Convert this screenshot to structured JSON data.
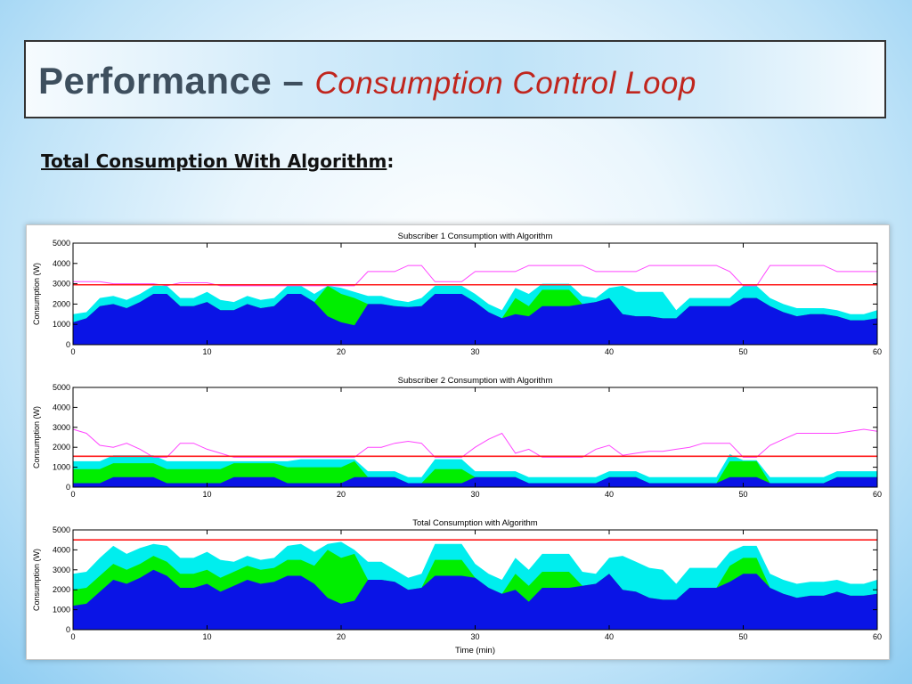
{
  "slide": {
    "title_main": "Performance –",
    "title_sub": "Consumption Control Loop",
    "subtitle_text": "Total Consumption With Algorithm",
    "subtitle_colon": ":"
  },
  "colors": {
    "blue": "#0a14e6",
    "green": "#00ee00",
    "cyan": "#00eeee",
    "red": "#ff1a1a",
    "magenta": "#ff44ff"
  },
  "chart_data": [
    {
      "type": "area",
      "title": "Subscriber 1 Consumption with Algorithm",
      "xlabel": "",
      "ylabel": "Consumption (W)",
      "xlim": [
        0,
        60
      ],
      "ylim": [
        0,
        5000
      ],
      "xticks": [
        0,
        10,
        20,
        30,
        40,
        50,
        60
      ],
      "yticks": [
        0,
        1000,
        2000,
        3000,
        4000,
        5000
      ],
      "limit": 2950,
      "x": [
        0,
        1,
        2,
        3,
        4,
        5,
        6,
        7,
        8,
        9,
        10,
        11,
        12,
        13,
        14,
        15,
        16,
        17,
        18,
        19,
        20,
        21,
        22,
        23,
        24,
        25,
        26,
        27,
        28,
        29,
        30,
        31,
        32,
        33,
        34,
        35,
        36,
        37,
        38,
        39,
        40,
        41,
        42,
        43,
        44,
        45,
        46,
        47,
        48,
        49,
        50,
        51,
        52,
        53,
        54,
        55,
        56,
        57,
        58,
        59,
        60
      ],
      "blue": [
        1100,
        1300,
        1900,
        2000,
        1800,
        2100,
        2500,
        2500,
        1900,
        1900,
        2100,
        1700,
        1700,
        2000,
        1800,
        1900,
        2500,
        2500,
        2100,
        1400,
        1100,
        950,
        2000,
        2000,
        1900,
        1850,
        1900,
        2500,
        2500,
        2500,
        2100,
        1600,
        1300,
        1500,
        1400,
        1900,
        1900,
        1900,
        2000,
        2100,
        2300,
        1500,
        1400,
        1400,
        1300,
        1300,
        1900,
        1900,
        1900,
        1900,
        2300,
        2300,
        1900,
        1600,
        1400,
        1500,
        1500,
        1400,
        1200,
        1200,
        1300
      ],
      "green": [
        1100,
        1300,
        1900,
        2000,
        1800,
        2100,
        2500,
        2500,
        1900,
        1900,
        2100,
        1700,
        1700,
        2000,
        1800,
        1900,
        2500,
        2500,
        2100,
        2900,
        2500,
        2300,
        2000,
        2000,
        1900,
        1850,
        1900,
        2500,
        2500,
        2500,
        2100,
        1600,
        1300,
        2300,
        1900,
        2700,
        2700,
        2700,
        2000,
        2100,
        2300,
        1500,
        1400,
        1400,
        1300,
        1300,
        1900,
        1900,
        1900,
        1900,
        2300,
        2300,
        1900,
        1600,
        1400,
        1500,
        1500,
        1400,
        1200,
        1200,
        1300
      ],
      "cyan": [
        1500,
        1600,
        2300,
        2400,
        2200,
        2500,
        2900,
        2900,
        2300,
        2300,
        2600,
        2200,
        2100,
        2400,
        2200,
        2300,
        2900,
        2900,
        2500,
        2900,
        2800,
        2600,
        2400,
        2400,
        2200,
        2100,
        2300,
        2900,
        2900,
        2900,
        2500,
        2000,
        1700,
        2800,
        2500,
        3000,
        3000,
        3000,
        2400,
        2300,
        2800,
        2900,
        2600,
        2600,
        2600,
        1700,
        2300,
        2300,
        2300,
        2300,
        2900,
        2900,
        2300,
        2000,
        1800,
        1800,
        1800,
        1700,
        1500,
        1500,
        1700
      ],
      "demand": [
        3100,
        3100,
        3100,
        3000,
        3000,
        3000,
        3000,
        2900,
        3050,
        3050,
        3050,
        2900,
        2900,
        2900,
        2900,
        2900,
        2900,
        2900,
        2900,
        2900,
        2900,
        2900,
        3600,
        3600,
        3600,
        3900,
        3900,
        3100,
        3100,
        3100,
        3600,
        3600,
        3600,
        3600,
        3900,
        3900,
        3900,
        3900,
        3900,
        3600,
        3600,
        3600,
        3600,
        3900,
        3900,
        3900,
        3900,
        3900,
        3900,
        3600,
        2900,
        2900,
        3900,
        3900,
        3900,
        3900,
        3900,
        3600,
        3600,
        3600,
        3600
      ]
    },
    {
      "type": "area",
      "title": "Subscriber 2 Consumption with Algorithm",
      "xlabel": "",
      "ylabel": "Consumption (W)",
      "xlim": [
        0,
        60
      ],
      "ylim": [
        0,
        5000
      ],
      "xticks": [
        0,
        10,
        20,
        30,
        40,
        50,
        60
      ],
      "yticks": [
        0,
        1000,
        2000,
        3000,
        4000,
        5000
      ],
      "limit": 1550,
      "x": [
        0,
        1,
        2,
        3,
        4,
        5,
        6,
        7,
        8,
        9,
        10,
        11,
        12,
        13,
        14,
        15,
        16,
        17,
        18,
        19,
        20,
        21,
        22,
        23,
        24,
        25,
        26,
        27,
        28,
        29,
        30,
        31,
        32,
        33,
        34,
        35,
        36,
        37,
        38,
        39,
        40,
        41,
        42,
        43,
        44,
        45,
        46,
        47,
        48,
        49,
        50,
        51,
        52,
        53,
        54,
        55,
        56,
        57,
        58,
        59,
        60
      ],
      "blue": [
        200,
        200,
        200,
        500,
        500,
        500,
        500,
        200,
        200,
        200,
        200,
        200,
        500,
        500,
        500,
        500,
        200,
        200,
        200,
        200,
        200,
        500,
        500,
        500,
        500,
        200,
        200,
        200,
        200,
        200,
        500,
        500,
        500,
        500,
        200,
        200,
        200,
        200,
        200,
        200,
        500,
        500,
        500,
        200,
        200,
        200,
        200,
        200,
        200,
        500,
        500,
        500,
        200,
        200,
        200,
        200,
        200,
        500,
        500,
        500,
        500
      ],
      "green": [
        900,
        900,
        900,
        1200,
        1200,
        1200,
        1200,
        900,
        900,
        900,
        900,
        900,
        1200,
        1200,
        1200,
        1200,
        1000,
        1000,
        1000,
        1000,
        1000,
        1300,
        500,
        500,
        500,
        200,
        200,
        900,
        900,
        900,
        500,
        500,
        500,
        500,
        200,
        200,
        200,
        200,
        200,
        200,
        500,
        500,
        500,
        200,
        200,
        200,
        200,
        200,
        200,
        1300,
        1300,
        1300,
        200,
        200,
        200,
        200,
        200,
        500,
        500,
        500,
        500
      ],
      "cyan": [
        1300,
        1300,
        1300,
        1600,
        1600,
        1600,
        1600,
        1300,
        1300,
        1300,
        1300,
        1300,
        1300,
        1300,
        1300,
        1300,
        1300,
        1400,
        1400,
        1400,
        1400,
        1400,
        800,
        800,
        800,
        500,
        500,
        1400,
        1400,
        1400,
        800,
        800,
        800,
        800,
        500,
        500,
        500,
        500,
        500,
        500,
        800,
        800,
        800,
        500,
        500,
        500,
        500,
        500,
        500,
        1650,
        1350,
        1350,
        500,
        500,
        500,
        500,
        500,
        800,
        800,
        800,
        800
      ],
      "demand": [
        2900,
        2700,
        2100,
        2000,
        2200,
        1900,
        1500,
        1500,
        2200,
        2200,
        1900,
        1700,
        1500,
        1500,
        1500,
        1500,
        1500,
        1500,
        1500,
        1500,
        1500,
        1500,
        2000,
        2000,
        2200,
        2300,
        2200,
        1500,
        1500,
        1500,
        2000,
        2400,
        2700,
        1700,
        1900,
        1500,
        1500,
        1500,
        1500,
        1900,
        2100,
        1600,
        1700,
        1800,
        1800,
        1900,
        2000,
        2200,
        2200,
        2200,
        1500,
        1500,
        2100,
        2400,
        2700,
        2700,
        2700,
        2700,
        2800,
        2900,
        2800
      ]
    },
    {
      "type": "area",
      "title": "Total Consumption with Algorithm",
      "xlabel": "Time (min)",
      "ylabel": "Consumption (W)",
      "xlim": [
        0,
        60
      ],
      "ylim": [
        0,
        5000
      ],
      "xticks": [
        0,
        10,
        20,
        30,
        40,
        50,
        60
      ],
      "yticks": [
        0,
        1000,
        2000,
        3000,
        4000,
        5000
      ],
      "limit": 4500,
      "x": [
        0,
        1,
        2,
        3,
        4,
        5,
        6,
        7,
        8,
        9,
        10,
        11,
        12,
        13,
        14,
        15,
        16,
        17,
        18,
        19,
        20,
        21,
        22,
        23,
        24,
        25,
        26,
        27,
        28,
        29,
        30,
        31,
        32,
        33,
        34,
        35,
        36,
        37,
        38,
        39,
        40,
        41,
        42,
        43,
        44,
        45,
        46,
        47,
        48,
        49,
        50,
        51,
        52,
        53,
        54,
        55,
        56,
        57,
        58,
        59,
        60
      ],
      "blue": [
        1200,
        1300,
        1900,
        2500,
        2300,
        2600,
        3000,
        2700,
        2100,
        2100,
        2300,
        1900,
        2200,
        2500,
        2300,
        2400,
        2700,
        2700,
        2300,
        1600,
        1300,
        1450,
        2500,
        2500,
        2400,
        2000,
        2100,
        2700,
        2700,
        2700,
        2600,
        2100,
        1800,
        2000,
        1400,
        2100,
        2100,
        2100,
        2200,
        2300,
        2800,
        2000,
        1900,
        1600,
        1500,
        1500,
        2100,
        2100,
        2100,
        2400,
        2800,
        2800,
        2100,
        1800,
        1600,
        1700,
        1700,
        1900,
        1700,
        1700,
        1800
      ],
      "green": [
        2000,
        2100,
        2700,
        3300,
        3000,
        3300,
        3700,
        3400,
        2800,
        2800,
        3000,
        2600,
        2900,
        3200,
        3000,
        3100,
        3500,
        3500,
        3200,
        4000,
        3600,
        3800,
        2500,
        2500,
        2400,
        2000,
        2100,
        3500,
        3500,
        3500,
        2600,
        2100,
        1800,
        2800,
        2200,
        2900,
        2900,
        2900,
        2200,
        2300,
        2800,
        2000,
        1900,
        1600,
        1500,
        1500,
        2100,
        2100,
        2100,
        3200,
        3600,
        3600,
        2100,
        1800,
        1600,
        1700,
        1700,
        1900,
        1700,
        1700,
        1800
      ],
      "cyan": [
        2800,
        2900,
        3600,
        4200,
        3800,
        4100,
        4300,
        4200,
        3600,
        3600,
        3900,
        3500,
        3400,
        3700,
        3500,
        3600,
        4200,
        4300,
        3900,
        4300,
        4400,
        4000,
        3400,
        3400,
        3000,
        2600,
        2800,
        4300,
        4300,
        4300,
        3300,
        2800,
        2500,
        3600,
        3000,
        3800,
        3800,
        3800,
        2900,
        2800,
        3600,
        3700,
        3400,
        3100,
        3000,
        2300,
        3100,
        3100,
        3100,
        3900,
        4200,
        4200,
        2800,
        2500,
        2300,
        2400,
        2400,
        2500,
        2300,
        2300,
        2500
      ]
    }
  ]
}
